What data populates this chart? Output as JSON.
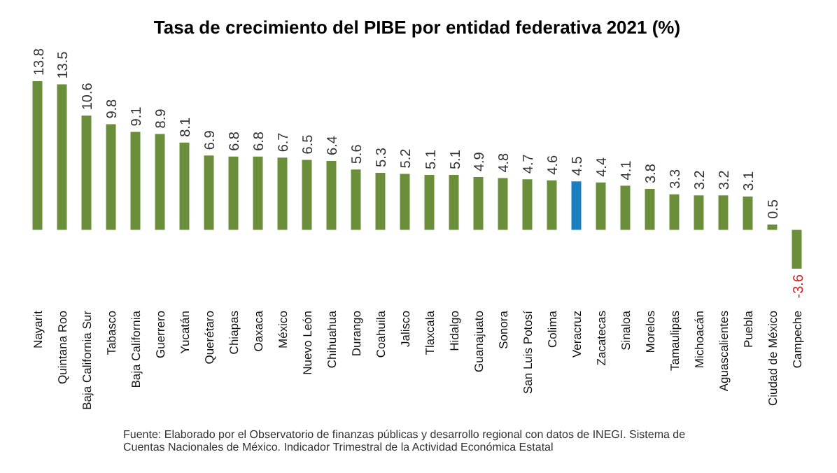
{
  "chart_data": {
    "type": "bar",
    "title": "Tasa de crecimiento del PIBE por entidad federativa 2021 (%)",
    "categories": [
      "Nayarit",
      "Quintana Roo",
      "Baja California Sur",
      "Tabasco",
      "Baja California",
      "Guerrero",
      "Yucatán",
      "Querétaro",
      "Chiapas",
      "Oaxaca",
      "México",
      "Nuevo León",
      "Chihuahua",
      "Durango",
      "Coahuila",
      "Jalisco",
      "Tlaxcala",
      "Hidalgo",
      "Guanajuato",
      "Sonora",
      "San Luis Potosí",
      "Colima",
      "Veracruz",
      "Zacatecas",
      "Sinaloa",
      "Morelos",
      "Tamaulipas",
      "Michoacán",
      "Aguascalientes",
      "Puebla",
      "Ciudad de México",
      "Campeche"
    ],
    "values": [
      13.8,
      13.5,
      10.6,
      9.8,
      9.1,
      8.9,
      8.1,
      6.9,
      6.8,
      6.8,
      6.7,
      6.5,
      6.4,
      5.6,
      5.3,
      5.2,
      5.1,
      5.1,
      4.9,
      4.8,
      4.7,
      4.6,
      4.5,
      4.4,
      4.1,
      3.8,
      3.3,
      3.2,
      3.2,
      3.1,
      0.5,
      -3.6
    ],
    "colors": [
      "#6b8e3a",
      "#6b8e3a",
      "#6b8e3a",
      "#6b8e3a",
      "#6b8e3a",
      "#6b8e3a",
      "#6b8e3a",
      "#6b8e3a",
      "#6b8e3a",
      "#6b8e3a",
      "#6b8e3a",
      "#6b8e3a",
      "#6b8e3a",
      "#6b8e3a",
      "#6b8e3a",
      "#6b8e3a",
      "#6b8e3a",
      "#6b8e3a",
      "#6b8e3a",
      "#6b8e3a",
      "#6b8e3a",
      "#6b8e3a",
      "#1a7fc1",
      "#6b8e3a",
      "#6b8e3a",
      "#6b8e3a",
      "#6b8e3a",
      "#6b8e3a",
      "#6b8e3a",
      "#6b8e3a",
      "#6b8e3a",
      "#6b8e3a"
    ],
    "data_labels": true,
    "annotations": [
      "Fuente: Elaborado por el Observatorio de finanzas públicas y desarrollo regional con datos de INEGI. Sistema de Cuentas Nacionales de México. Indicador Trimestral de la Actividad Económica Estatal"
    ]
  }
}
